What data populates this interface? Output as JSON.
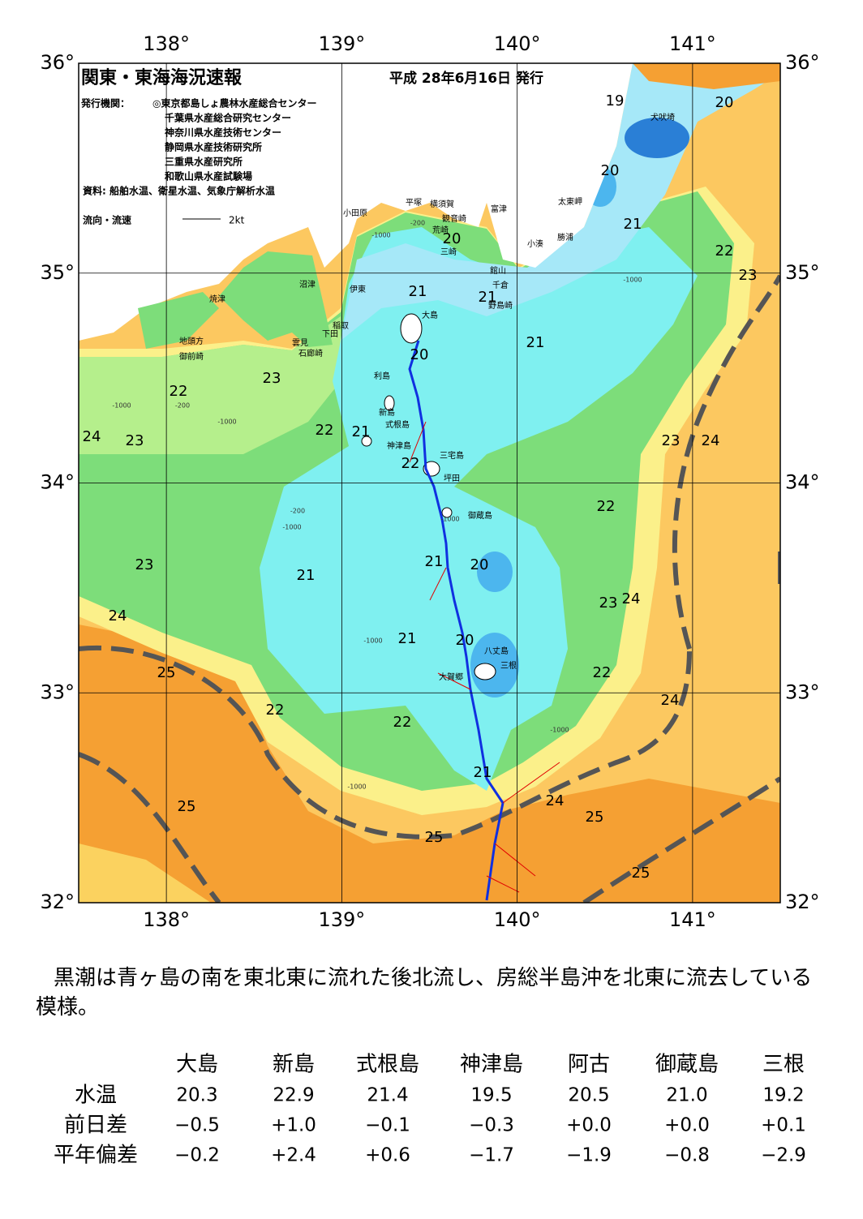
{
  "header": {
    "title": "関東・東海海況速報",
    "date": "平成 28年6月16日 発行",
    "issuer_label": "発行機関：",
    "issuers": [
      "◎東京都島しょ農林水産総合センター",
      "千葉県水産総合研究センター",
      "神奈川県水産技術センター",
      "静岡県水産技術研究所",
      "三重県水産研究所",
      "和歌山県水産試験場"
    ],
    "source": "資料: 船舶水温、衛星水温、気象庁解析水温",
    "legend_label": "流向・流速",
    "legend_speed": "2kt"
  },
  "map": {
    "lon_ticks": [
      {
        "value": 138,
        "label": "138°"
      },
      {
        "value": 139,
        "label": "139°"
      },
      {
        "value": 140,
        "label": "140°"
      },
      {
        "value": 141,
        "label": "141°"
      }
    ],
    "lat_ticks": [
      {
        "value": 32,
        "label": "32°"
      },
      {
        "value": 33,
        "label": "33°"
      },
      {
        "value": 34,
        "label": "34°"
      },
      {
        "value": 35,
        "label": "35°"
      },
      {
        "value": 36,
        "label": "36°"
      }
    ],
    "place_names": [
      "小田原",
      "平塚",
      "横須賀",
      "観音崎",
      "荒崎",
      "三崎",
      "富津",
      "館山",
      "千倉",
      "野島崎",
      "太東岬",
      "勝浦",
      "小湊",
      "犬吠埼",
      "沼津",
      "伊東",
      "焼津",
      "稲取",
      "下田",
      "雲見",
      "石廊崎",
      "地頭方",
      "御前崎",
      "大島",
      "利島",
      "新島",
      "式根島",
      "神津島",
      "三宅島",
      "坪田",
      "御蔵島",
      "八丈島",
      "三根",
      "大賀郷"
    ],
    "temperature_labels": [
      "19",
      "20",
      "20",
      "21",
      "22",
      "23",
      "20",
      "21",
      "21",
      "21",
      "20",
      "23",
      "22",
      "22",
      "21",
      "24",
      "23",
      "22",
      "23",
      "24",
      "22",
      "21",
      "20",
      "23",
      "21",
      "24",
      "23",
      "24",
      "21",
      "20",
      "25",
      "22",
      "24",
      "22",
      "22",
      "21",
      "24",
      "25",
      "25",
      "25",
      "25"
    ],
    "depth_labels": [
      "-1000",
      "-200",
      "-1000",
      "-1000",
      "-200",
      "-1000",
      "-1000",
      "-200",
      "-1000",
      "-1000",
      "-1000",
      "-1000"
    ]
  },
  "summary": "黒潮は青ヶ島の南を東北東に流れた後北流し、房総半島沖を北東に流去している模様。",
  "table": {
    "columns": [
      "大島",
      "新島",
      "式根島",
      "神津島",
      "阿古",
      "御蔵島",
      "三根"
    ],
    "rows": [
      {
        "label": "水温",
        "values": [
          "20.3",
          "22.9",
          "21.4",
          "19.5",
          "20.5",
          "21.0",
          "19.2"
        ]
      },
      {
        "label": "前日差",
        "values": [
          "−0.5",
          "+1.0",
          "−0.1",
          "−0.3",
          "+0.0",
          "+0.0",
          "+0.1"
        ]
      },
      {
        "label": "平年偏差",
        "values": [
          "−0.2",
          "+2.4",
          "+0.6",
          "−1.7",
          "−1.9",
          "−0.8",
          "−2.9"
        ]
      }
    ]
  }
}
